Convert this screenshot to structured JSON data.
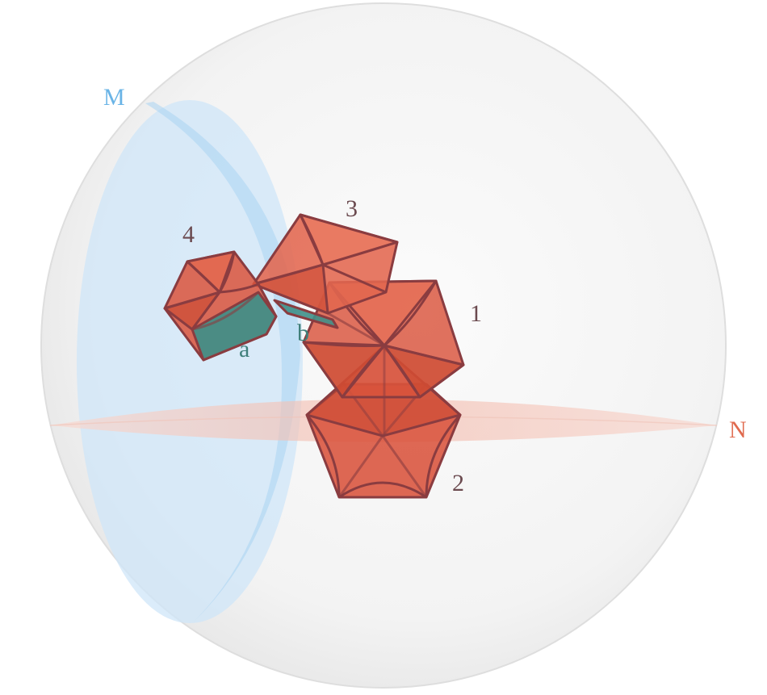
{
  "labels": {
    "plane_m": "M",
    "plane_n": "N",
    "poly_1": "1",
    "poly_2": "2",
    "poly_3": "3",
    "poly_4": "4",
    "face_a": "a",
    "face_b": "b"
  },
  "colors": {
    "sphere_fill": "#f2f2f2",
    "sphere_edge": "#dcdcdc",
    "plane_m_fill": "#cfe6f8",
    "plane_m_edge": "#a9d3f2",
    "plane_m_label": "#6ab4e6",
    "plane_n_fill": "#f6cfc6",
    "plane_n_label": "#e06a4e",
    "poly_fill": "#d9533c",
    "poly_edge": "#8a3c40",
    "teal_face": "#3f8f88",
    "teal_label": "#3f7f7a",
    "number_label": "#6b4a4f"
  }
}
